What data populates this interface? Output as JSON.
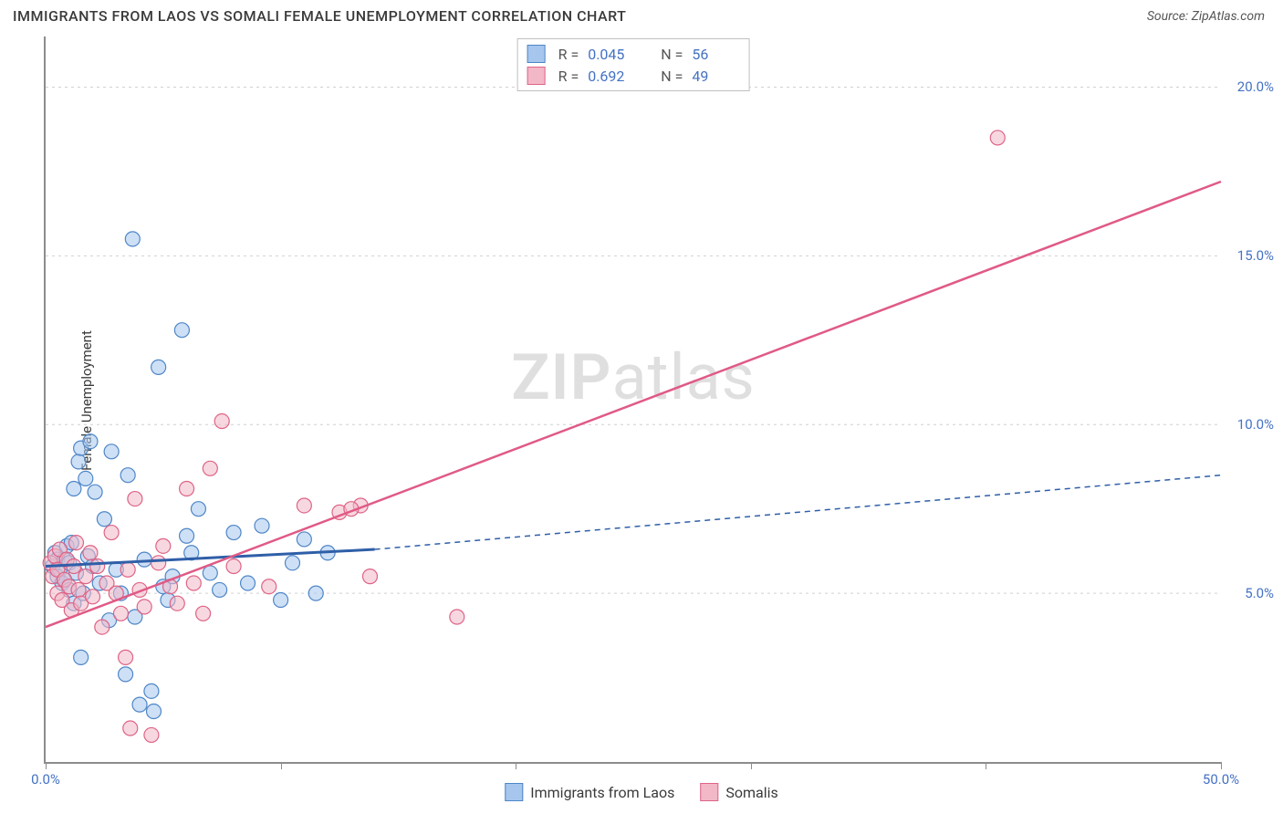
{
  "header": {
    "title": "IMMIGRANTS FROM LAOS VS SOMALI FEMALE UNEMPLOYMENT CORRELATION CHART",
    "source_label": "Source: ",
    "source_name": "ZipAtlas.com"
  },
  "watermark": {
    "zip": "ZIP",
    "atlas": "atlas"
  },
  "chart": {
    "type": "scatter",
    "y_axis_label": "Female Unemployment",
    "xlim": [
      0,
      50
    ],
    "ylim": [
      0,
      21.5
    ],
    "x_ticks": [
      0,
      10,
      20,
      30,
      40,
      50
    ],
    "x_tick_labels": [
      "0.0%",
      "",
      "",
      "",
      "",
      "50.0%"
    ],
    "y_gridlines": [
      5,
      10,
      15,
      20
    ],
    "y_tick_labels": [
      "5.0%",
      "10.0%",
      "15.0%",
      "20.0%"
    ],
    "background_color": "#ffffff",
    "grid_color": "#d0d0d0",
    "axis_color": "#8c8c8c",
    "tick_label_color": "#4472c4",
    "point_radius": 8,
    "point_opacity": 0.55,
    "series": [
      {
        "name": "Immigrants from Laos",
        "fill": "#a6c6ee",
        "stroke": "#4e86c7",
        "r_label": "R =",
        "r_value": "0.045",
        "n_label": "N =",
        "n_value": "56",
        "trend": {
          "solid": {
            "x1": 0,
            "y1": 5.8,
            "x2": 14,
            "y2": 6.3,
            "color": "#2f5fa8",
            "width": 3
          },
          "dashed": {
            "x1": 14,
            "y1": 6.3,
            "x2": 50,
            "y2": 8.5,
            "color": "#2f5fa8",
            "width": 1.5,
            "dash": "6,5"
          }
        },
        "points": [
          [
            0.3,
            5.8
          ],
          [
            0.4,
            6.2
          ],
          [
            0.5,
            5.5
          ],
          [
            0.5,
            6.0
          ],
          [
            0.6,
            5.7
          ],
          [
            0.7,
            5.3
          ],
          [
            0.8,
            6.0
          ],
          [
            0.8,
            5.4
          ],
          [
            0.9,
            6.4
          ],
          [
            1.0,
            5.1
          ],
          [
            1.0,
            5.9
          ],
          [
            1.1,
            6.5
          ],
          [
            1.2,
            4.7
          ],
          [
            1.2,
            8.1
          ],
          [
            1.3,
            5.6
          ],
          [
            1.4,
            8.9
          ],
          [
            1.5,
            3.1
          ],
          [
            1.5,
            9.3
          ],
          [
            1.6,
            5.0
          ],
          [
            1.7,
            8.4
          ],
          [
            1.8,
            6.1
          ],
          [
            1.9,
            9.5
          ],
          [
            2.0,
            5.8
          ],
          [
            2.1,
            8.0
          ],
          [
            2.3,
            5.3
          ],
          [
            2.5,
            7.2
          ],
          [
            2.7,
            4.2
          ],
          [
            2.8,
            9.2
          ],
          [
            3.0,
            5.7
          ],
          [
            3.2,
            5.0
          ],
          [
            3.4,
            2.6
          ],
          [
            3.5,
            8.5
          ],
          [
            3.7,
            15.5
          ],
          [
            3.8,
            4.3
          ],
          [
            4.0,
            1.7
          ],
          [
            4.2,
            6.0
          ],
          [
            4.5,
            2.1
          ],
          [
            4.6,
            1.5
          ],
          [
            4.8,
            11.7
          ],
          [
            5.0,
            5.2
          ],
          [
            5.2,
            4.8
          ],
          [
            5.4,
            5.5
          ],
          [
            5.8,
            12.8
          ],
          [
            6.0,
            6.7
          ],
          [
            6.2,
            6.2
          ],
          [
            6.5,
            7.5
          ],
          [
            7.0,
            5.6
          ],
          [
            7.4,
            5.1
          ],
          [
            8.0,
            6.8
          ],
          [
            8.6,
            5.3
          ],
          [
            9.2,
            7.0
          ],
          [
            10.0,
            4.8
          ],
          [
            10.5,
            5.9
          ],
          [
            11.0,
            6.6
          ],
          [
            11.5,
            5.0
          ],
          [
            12.0,
            6.2
          ]
        ]
      },
      {
        "name": "Somalis",
        "fill": "#f3b8c7",
        "stroke": "#de6386",
        "r_label": "R =",
        "r_value": "0.692",
        "n_label": "N =",
        "n_value": "49",
        "trend": {
          "solid": {
            "x1": 0,
            "y1": 4.0,
            "x2": 50,
            "y2": 17.2,
            "color": "#e05a85",
            "width": 2.5
          }
        },
        "points": [
          [
            0.2,
            5.9
          ],
          [
            0.3,
            5.5
          ],
          [
            0.4,
            6.1
          ],
          [
            0.5,
            5.0
          ],
          [
            0.5,
            5.7
          ],
          [
            0.6,
            6.3
          ],
          [
            0.7,
            4.8
          ],
          [
            0.8,
            5.4
          ],
          [
            0.9,
            6.0
          ],
          [
            1.0,
            5.2
          ],
          [
            1.1,
            4.5
          ],
          [
            1.2,
            5.8
          ],
          [
            1.3,
            6.5
          ],
          [
            1.4,
            5.1
          ],
          [
            1.5,
            4.7
          ],
          [
            1.7,
            5.5
          ],
          [
            1.9,
            6.2
          ],
          [
            2.0,
            4.9
          ],
          [
            2.2,
            5.8
          ],
          [
            2.4,
            4.0
          ],
          [
            2.6,
            5.3
          ],
          [
            2.8,
            6.8
          ],
          [
            3.0,
            5.0
          ],
          [
            3.2,
            4.4
          ],
          [
            3.4,
            3.1
          ],
          [
            3.5,
            5.7
          ],
          [
            3.6,
            1.0
          ],
          [
            3.8,
            7.8
          ],
          [
            4.0,
            5.1
          ],
          [
            4.2,
            4.6
          ],
          [
            4.5,
            0.8
          ],
          [
            4.8,
            5.9
          ],
          [
            5.0,
            6.4
          ],
          [
            5.3,
            5.2
          ],
          [
            5.6,
            4.7
          ],
          [
            6.0,
            8.1
          ],
          [
            6.3,
            5.3
          ],
          [
            6.7,
            4.4
          ],
          [
            7.0,
            8.7
          ],
          [
            7.5,
            10.1
          ],
          [
            8.0,
            5.8
          ],
          [
            9.5,
            5.2
          ],
          [
            11.0,
            7.6
          ],
          [
            12.5,
            7.4
          ],
          [
            13.4,
            7.6
          ],
          [
            13.8,
            5.5
          ],
          [
            17.5,
            4.3
          ],
          [
            40.5,
            18.5
          ],
          [
            13.0,
            7.5
          ]
        ]
      }
    ]
  },
  "legend_bottom": {
    "items": [
      {
        "swatch_fill": "#a6c6ee",
        "swatch_stroke": "#4e86c7",
        "label": "Immigrants from Laos"
      },
      {
        "swatch_fill": "#f3b8c7",
        "swatch_stroke": "#de6386",
        "label": "Somalis"
      }
    ]
  }
}
